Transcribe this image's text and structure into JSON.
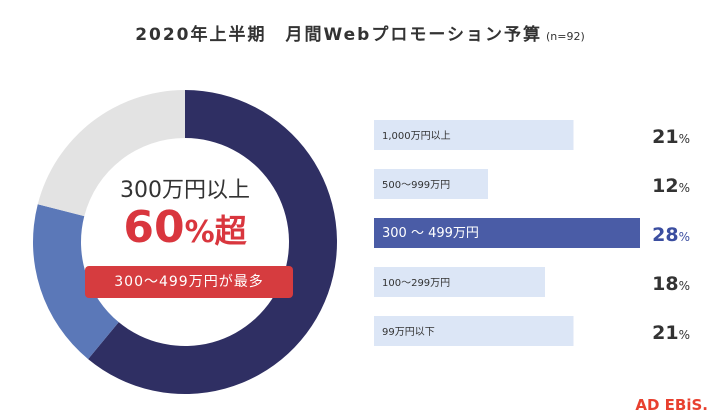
{
  "title": "2020年上半期　月間Webプロモーション予算",
  "title_note": "(n=92)",
  "center": {
    "line1": "300万円以上",
    "big_number": "60",
    "big_pct": "%",
    "big_suffix": "超",
    "badge": "300〜499万円が最多"
  },
  "logo": "AD EBiS.",
  "colors": {
    "dark_navy": "#2f2f63",
    "medium_blue": "#5b78b8",
    "light_gray": "#e3e3e3",
    "highlight_bar": "#4a5ca6",
    "light_bar": "#dce6f6",
    "highlight_text": "#3b4ea0",
    "accent_red": "#d63c3f"
  },
  "chart_data": {
    "type": "bar",
    "categories": [
      "1,000万円以上",
      "500〜999万円",
      "300 〜 499万円",
      "100〜299万円",
      "99万円以下"
    ],
    "values": [
      21,
      12,
      28,
      18,
      21
    ],
    "value_labels": [
      "21",
      "12",
      "28",
      "18",
      "21"
    ],
    "unit": "%",
    "highlight_index": 2,
    "xlim": [
      0,
      28
    ],
    "donut": {
      "type": "pie",
      "segments": [
        {
          "value": 61,
          "color": "#2f2f63"
        },
        {
          "value": 18,
          "color": "#5b78b8"
        },
        {
          "value": 21,
          "color": "#e3e3e3"
        }
      ]
    }
  }
}
